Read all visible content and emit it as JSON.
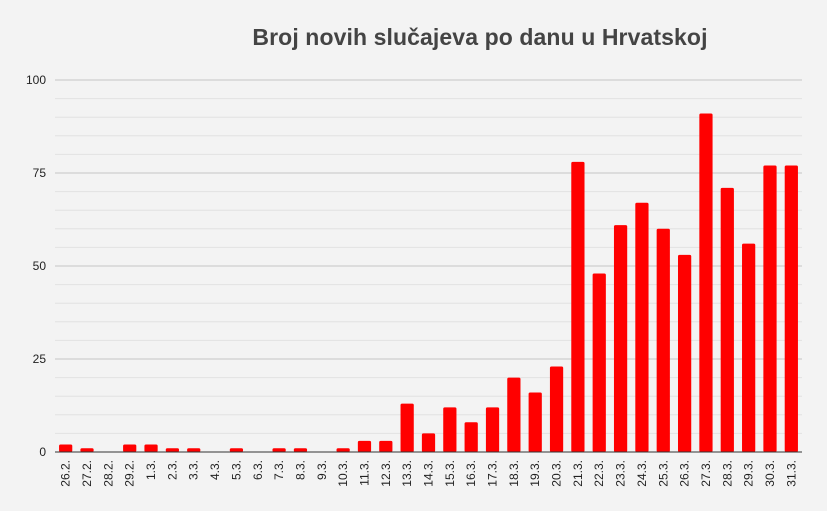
{
  "chart_data": {
    "type": "bar",
    "title": "Broj novih slučajeva po danu u Hrvatskoj",
    "xlabel": "",
    "ylabel": "",
    "ylim": [
      0,
      100
    ],
    "yticks": [
      "0",
      "25",
      "50",
      "75",
      "100"
    ],
    "grid": true,
    "legend": "none",
    "bar_color": "#ff0000",
    "categories": [
      "26.2.",
      "27.2.",
      "28.2.",
      "29.2.",
      "1.3.",
      "2.3.",
      "3.3.",
      "4.3.",
      "5.3.",
      "6.3.",
      "7.3.",
      "8.3.",
      "9.3.",
      "10.3.",
      "11.3.",
      "12.3.",
      "13.3.",
      "14.3.",
      "15.3.",
      "16.3.",
      "17.3.",
      "18.3.",
      "19.3.",
      "20.3.",
      "21.3.",
      "22.3.",
      "23.3.",
      "24.3.",
      "25.3.",
      "26.3.",
      "27.3.",
      "28.3.",
      "29.3.",
      "30.3.",
      "31.3."
    ],
    "values": [
      2,
      1,
      0,
      2,
      2,
      1,
      1,
      0,
      1,
      0,
      1,
      1,
      0,
      1,
      3,
      3,
      13,
      5,
      12,
      8,
      12,
      20,
      16,
      23,
      78,
      48,
      61,
      67,
      60,
      53,
      91,
      71,
      56,
      77,
      77
    ]
  }
}
